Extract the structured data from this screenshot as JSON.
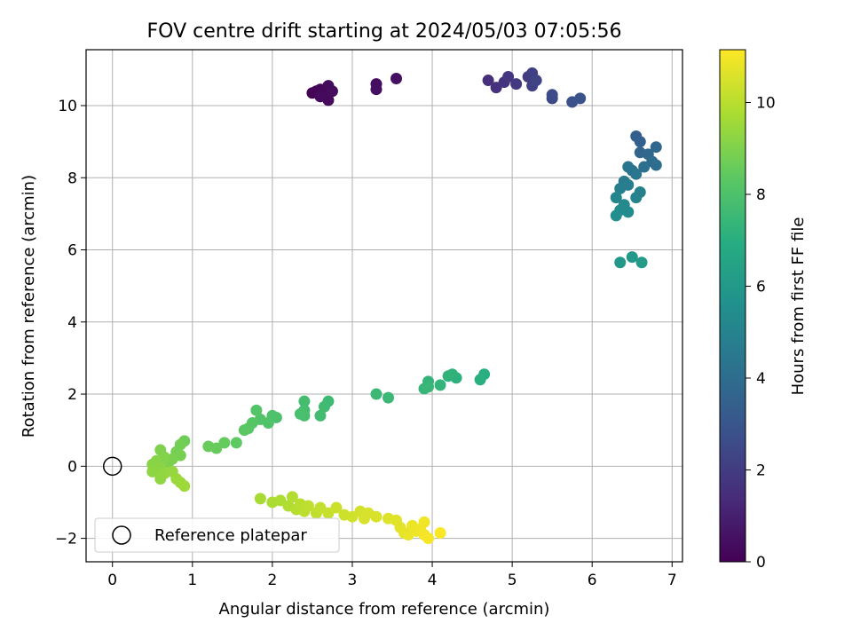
{
  "chart_data": {
    "type": "scatter",
    "title": "FOV centre drift starting at 2024/05/03 07:05:56",
    "xlabel": "Angular distance from reference (arcmin)",
    "ylabel": "Rotation from reference (arcmin)",
    "xlim": [
      -0.33,
      7.13
    ],
    "ylim": [
      -2.65,
      11.55
    ],
    "xticks": [
      0,
      1,
      2,
      3,
      4,
      5,
      6,
      7
    ],
    "yticks": [
      -2,
      0,
      2,
      4,
      6,
      8,
      10
    ],
    "grid": true,
    "legend": {
      "placement": "lower-left",
      "entries": [
        "Reference platepar"
      ]
    },
    "reference_point": {
      "x": 0,
      "y": 0
    },
    "colorbar": {
      "label": "Hours from first FF file",
      "colormap": "viridis",
      "range": [
        0,
        11.15
      ],
      "ticks": [
        0,
        2,
        4,
        6,
        8,
        10
      ]
    },
    "series": [
      {
        "values": [
          {
            "x": 2.5,
            "y": 10.35,
            "c": 0.0
          },
          {
            "x": 2.55,
            "y": 10.4,
            "c": 0.1
          },
          {
            "x": 2.6,
            "y": 10.45,
            "c": 0.15
          },
          {
            "x": 2.65,
            "y": 10.3,
            "c": 0.2
          },
          {
            "x": 2.7,
            "y": 10.55,
            "c": 0.25
          },
          {
            "x": 2.7,
            "y": 10.15,
            "c": 0.3
          },
          {
            "x": 2.75,
            "y": 10.4,
            "c": 0.35
          },
          {
            "x": 2.6,
            "y": 10.25,
            "c": 0.3
          },
          {
            "x": 3.3,
            "y": 10.6,
            "c": 0.4
          },
          {
            "x": 3.3,
            "y": 10.45,
            "c": 0.45
          },
          {
            "x": 3.55,
            "y": 10.75,
            "c": 0.5
          },
          {
            "x": 4.7,
            "y": 10.7,
            "c": 1.5
          },
          {
            "x": 4.8,
            "y": 10.5,
            "c": 1.6
          },
          {
            "x": 4.9,
            "y": 10.65,
            "c": 1.7
          },
          {
            "x": 4.95,
            "y": 10.8,
            "c": 1.8
          },
          {
            "x": 5.05,
            "y": 10.6,
            "c": 1.9
          },
          {
            "x": 5.2,
            "y": 10.8,
            "c": 2.0
          },
          {
            "x": 5.25,
            "y": 10.9,
            "c": 2.1
          },
          {
            "x": 5.25,
            "y": 10.55,
            "c": 2.2
          },
          {
            "x": 5.3,
            "y": 10.7,
            "c": 2.3
          },
          {
            "x": 5.5,
            "y": 10.2,
            "c": 2.5
          },
          {
            "x": 5.5,
            "y": 10.3,
            "c": 2.6
          },
          {
            "x": 5.75,
            "y": 10.1,
            "c": 2.8
          },
          {
            "x": 5.85,
            "y": 10.2,
            "c": 2.9
          },
          {
            "x": 6.55,
            "y": 9.15,
            "c": 3.4
          },
          {
            "x": 6.6,
            "y": 9.0,
            "c": 3.5
          },
          {
            "x": 6.6,
            "y": 8.7,
            "c": 3.6
          },
          {
            "x": 6.7,
            "y": 8.65,
            "c": 3.7
          },
          {
            "x": 6.8,
            "y": 8.85,
            "c": 3.8
          },
          {
            "x": 6.75,
            "y": 8.45,
            "c": 3.9
          },
          {
            "x": 6.8,
            "y": 8.35,
            "c": 4.0
          },
          {
            "x": 6.65,
            "y": 8.3,
            "c": 4.1
          },
          {
            "x": 6.5,
            "y": 8.2,
            "c": 4.2
          },
          {
            "x": 6.45,
            "y": 8.3,
            "c": 4.3
          },
          {
            "x": 6.55,
            "y": 8.1,
            "c": 4.4
          },
          {
            "x": 6.4,
            "y": 7.9,
            "c": 4.6
          },
          {
            "x": 6.45,
            "y": 7.8,
            "c": 4.7
          },
          {
            "x": 6.35,
            "y": 7.7,
            "c": 4.8
          },
          {
            "x": 6.6,
            "y": 7.6,
            "c": 4.9
          },
          {
            "x": 6.55,
            "y": 7.45,
            "c": 5.0
          },
          {
            "x": 6.3,
            "y": 7.45,
            "c": 5.1
          },
          {
            "x": 6.4,
            "y": 7.25,
            "c": 5.2
          },
          {
            "x": 6.35,
            "y": 7.1,
            "c": 5.3
          },
          {
            "x": 6.45,
            "y": 7.05,
            "c": 5.4
          },
          {
            "x": 6.3,
            "y": 6.95,
            "c": 5.5
          },
          {
            "x": 6.35,
            "y": 5.65,
            "c": 5.9
          },
          {
            "x": 6.5,
            "y": 5.8,
            "c": 6.0
          },
          {
            "x": 6.62,
            "y": 5.65,
            "c": 6.1
          },
          {
            "x": 4.65,
            "y": 2.55,
            "c": 7.0
          },
          {
            "x": 4.6,
            "y": 2.4,
            "c": 7.05
          },
          {
            "x": 4.3,
            "y": 2.45,
            "c": 7.1
          },
          {
            "x": 4.25,
            "y": 2.55,
            "c": 7.2
          },
          {
            "x": 4.2,
            "y": 2.5,
            "c": 7.25
          },
          {
            "x": 4.1,
            "y": 2.25,
            "c": 7.3
          },
          {
            "x": 3.95,
            "y": 2.35,
            "c": 7.35
          },
          {
            "x": 3.9,
            "y": 2.15,
            "c": 7.4
          },
          {
            "x": 3.95,
            "y": 2.2,
            "c": 7.45
          },
          {
            "x": 3.45,
            "y": 1.9,
            "c": 7.5
          },
          {
            "x": 3.3,
            "y": 2.0,
            "c": 7.55
          },
          {
            "x": 2.7,
            "y": 1.8,
            "c": 7.6
          },
          {
            "x": 2.65,
            "y": 1.65,
            "c": 7.65
          },
          {
            "x": 2.6,
            "y": 1.4,
            "c": 7.7
          },
          {
            "x": 2.4,
            "y": 1.8,
            "c": 7.75
          },
          {
            "x": 2.4,
            "y": 1.55,
            "c": 7.8
          },
          {
            "x": 2.4,
            "y": 1.4,
            "c": 7.85
          },
          {
            "x": 2.35,
            "y": 1.45,
            "c": 7.9
          },
          {
            "x": 2.05,
            "y": 1.35,
            "c": 7.95
          },
          {
            "x": 2.0,
            "y": 1.4,
            "c": 8.0
          },
          {
            "x": 1.95,
            "y": 1.2,
            "c": 8.05
          },
          {
            "x": 1.85,
            "y": 1.3,
            "c": 8.1
          },
          {
            "x": 1.8,
            "y": 1.55,
            "c": 8.15
          },
          {
            "x": 1.75,
            "y": 1.2,
            "c": 8.2
          },
          {
            "x": 1.7,
            "y": 1.05,
            "c": 8.25
          },
          {
            "x": 1.65,
            "y": 1.0,
            "c": 8.3
          },
          {
            "x": 1.55,
            "y": 0.65,
            "c": 8.4
          },
          {
            "x": 1.4,
            "y": 0.65,
            "c": 8.5
          },
          {
            "x": 1.3,
            "y": 0.5,
            "c": 8.55
          },
          {
            "x": 1.2,
            "y": 0.55,
            "c": 8.6
          },
          {
            "x": 0.9,
            "y": 0.7,
            "c": 8.7
          },
          {
            "x": 0.85,
            "y": 0.6,
            "c": 8.75
          },
          {
            "x": 0.8,
            "y": 0.4,
            "c": 8.8
          },
          {
            "x": 0.85,
            "y": 0.3,
            "c": 8.85
          },
          {
            "x": 0.75,
            "y": 0.2,
            "c": 8.9
          },
          {
            "x": 0.7,
            "y": 0.1,
            "c": 8.95
          },
          {
            "x": 0.6,
            "y": 0.45,
            "c": 9.0
          },
          {
            "x": 0.65,
            "y": 0.25,
            "c": 9.05
          },
          {
            "x": 0.55,
            "y": 0.15,
            "c": 9.1
          },
          {
            "x": 0.5,
            "y": 0.05,
            "c": 9.15
          },
          {
            "x": 0.6,
            "y": -0.05,
            "c": 9.2
          },
          {
            "x": 0.5,
            "y": -0.15,
            "c": 9.25
          },
          {
            "x": 0.6,
            "y": -0.35,
            "c": 9.3
          },
          {
            "x": 0.65,
            "y": -0.2,
            "c": 9.35
          },
          {
            "x": 0.75,
            "y": -0.15,
            "c": 9.4
          },
          {
            "x": 0.8,
            "y": -0.35,
            "c": 9.45
          },
          {
            "x": 0.85,
            "y": -0.45,
            "c": 9.5
          },
          {
            "x": 0.9,
            "y": -0.55,
            "c": 9.55
          },
          {
            "x": 1.85,
            "y": -0.9,
            "c": 9.7
          },
          {
            "x": 2.0,
            "y": -1.0,
            "c": 9.75
          },
          {
            "x": 2.1,
            "y": -0.95,
            "c": 9.8
          },
          {
            "x": 2.2,
            "y": -1.1,
            "c": 9.85
          },
          {
            "x": 2.25,
            "y": -0.85,
            "c": 9.9
          },
          {
            "x": 2.3,
            "y": -1.2,
            "c": 9.95
          },
          {
            "x": 2.35,
            "y": -1.05,
            "c": 10.0
          },
          {
            "x": 2.4,
            "y": -1.25,
            "c": 10.05
          },
          {
            "x": 2.45,
            "y": -1.1,
            "c": 10.1
          },
          {
            "x": 2.55,
            "y": -1.3,
            "c": 10.15
          },
          {
            "x": 2.6,
            "y": -1.15,
            "c": 10.2
          },
          {
            "x": 2.7,
            "y": -1.3,
            "c": 10.25
          },
          {
            "x": 2.8,
            "y": -1.15,
            "c": 10.3
          },
          {
            "x": 2.9,
            "y": -1.35,
            "c": 10.35
          },
          {
            "x": 3.0,
            "y": -1.4,
            "c": 10.4
          },
          {
            "x": 3.1,
            "y": -1.25,
            "c": 10.45
          },
          {
            "x": 3.2,
            "y": -1.3,
            "c": 10.5
          },
          {
            "x": 3.15,
            "y": -1.45,
            "c": 10.5
          },
          {
            "x": 3.3,
            "y": -1.4,
            "c": 10.55
          },
          {
            "x": 3.45,
            "y": -1.45,
            "c": 10.6
          },
          {
            "x": 3.55,
            "y": -1.5,
            "c": 10.65
          },
          {
            "x": 3.6,
            "y": -1.7,
            "c": 10.7
          },
          {
            "x": 3.65,
            "y": -1.85,
            "c": 10.75
          },
          {
            "x": 3.7,
            "y": -1.9,
            "c": 10.8
          },
          {
            "x": 3.75,
            "y": -1.65,
            "c": 10.85
          },
          {
            "x": 3.8,
            "y": -1.8,
            "c": 10.9
          },
          {
            "x": 3.85,
            "y": -1.75,
            "c": 10.95
          },
          {
            "x": 3.9,
            "y": -1.55,
            "c": 10.95
          },
          {
            "x": 3.9,
            "y": -1.9,
            "c": 11.0
          },
          {
            "x": 3.95,
            "y": -2.0,
            "c": 11.05
          },
          {
            "x": 4.1,
            "y": -1.85,
            "c": 11.1
          }
        ]
      }
    ]
  }
}
